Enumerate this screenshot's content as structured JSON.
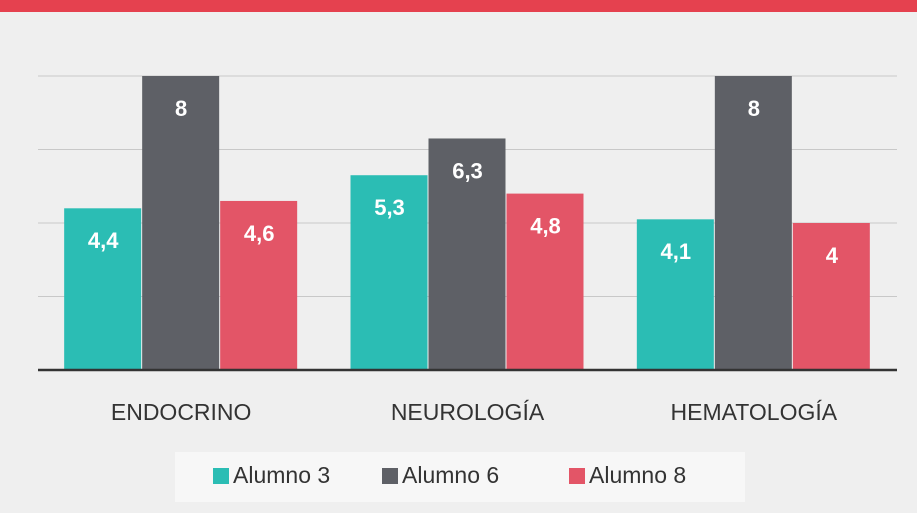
{
  "chart_data": {
    "type": "bar",
    "categories": [
      "ENDOCRINO",
      "NEUROLOGÍA",
      "HEMATOLOGÍA"
    ],
    "series": [
      {
        "name": "Alumno 3",
        "color": "#2bbdb4",
        "values": [
          4.4,
          5.3,
          4.1
        ],
        "value_labels": [
          "4,4",
          "5,3",
          "4,1"
        ]
      },
      {
        "name": "Alumno 6",
        "color": "#5e6066",
        "values": [
          8,
          6.3,
          8
        ],
        "value_labels": [
          "8",
          "6,3",
          "8"
        ]
      },
      {
        "name": "Alumno 8",
        "color": "#e35567",
        "values": [
          4.6,
          4.8,
          4
        ],
        "value_labels": [
          "4,6",
          "4,8",
          "4"
        ]
      }
    ],
    "ylim": [
      0,
      8
    ],
    "yticks": [
      0,
      2,
      4,
      6,
      8
    ],
    "grid": true,
    "legend": "bottom"
  }
}
